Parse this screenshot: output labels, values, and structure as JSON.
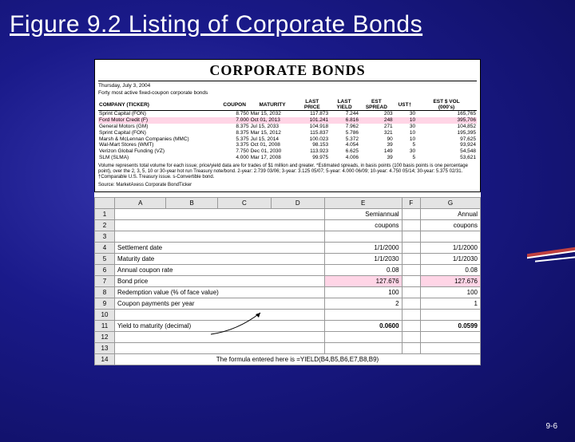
{
  "slide": {
    "title": "Figure 9.2 Listing of Corporate Bonds",
    "page_number": "9-6"
  },
  "bonds": {
    "box_title": "CORPORATE BONDS",
    "date_line": "Thursday, July 3, 2004",
    "sub_line": "Forty most active fixed-coupon corporate bonds",
    "headers": {
      "company": "COMPANY (TICKER)",
      "coupon": "COUPON",
      "maturity": "MATURITY",
      "last_price": "LAST\nPRICE",
      "last_yield": "LAST\nYIELD",
      "est_spread": "EST\nSPREAD",
      "ust": "UST†",
      "vol": "EST $ VOL\n(000's)"
    },
    "rows": [
      {
        "company": "Sprint Capital (FON)",
        "coupon": "8.750",
        "maturity": "Mar 15, 2032",
        "price": "117.873",
        "yield": "7.244",
        "spread": "203",
        "ust": "30",
        "vol": "165,765"
      },
      {
        "company": "Ford Motor Credit (F)",
        "coupon": "7.000",
        "maturity": "Oct 01, 2013",
        "price": "101.241",
        "yield": "6.816",
        "spread": "248",
        "ust": "10",
        "vol": "395,706",
        "hl": true
      },
      {
        "company": "General Motors (GM)",
        "coupon": "8.375",
        "maturity": "Jul 15, 2033",
        "price": "104.918",
        "yield": "7.962",
        "spread": "271",
        "ust": "30",
        "vol": "104,852"
      },
      {
        "company": "Sprint Capital (FON)",
        "coupon": "8.375",
        "maturity": "Mar 15, 2012",
        "price": "115.837",
        "yield": "5.786",
        "spread": "321",
        "ust": "10",
        "vol": "195,395"
      },
      {
        "company": "Marsh & McLennan Companies (MMC)",
        "coupon": "5.375",
        "maturity": "Jul 15, 2014",
        "price": "100.023",
        "yield": "5.372",
        "spread": "90",
        "ust": "10",
        "vol": "97,625"
      },
      {
        "company": "Wal-Mart Stores (WMT)",
        "coupon": "3.375",
        "maturity": "Oct 01, 2008",
        "price": "98.153",
        "yield": "4.054",
        "spread": "39",
        "ust": "5",
        "vol": "93,924"
      },
      {
        "company": "Verizon Global Funding (VZ)",
        "coupon": "7.750",
        "maturity": "Dec 01, 2030",
        "price": "113.923",
        "yield": "6.625",
        "spread": "149",
        "ust": "30",
        "vol": "54,548"
      },
      {
        "company": "SLM (SLMA)",
        "coupon": "4.000",
        "maturity": "Mar 17, 2008",
        "price": "99.975",
        "yield": "4.006",
        "spread": "39",
        "ust": "5",
        "vol": "53,621"
      }
    ],
    "footnote": "Volume represents total volume for each issue; price/yield data are for trades of $1 million and greater. *Estimated spreads, in basis points (100 basis points is one percentage point), over the 2, 3, 5, 10 or 30-year hot run Treasury note/bond. 2-year: 2.739 03/06; 3-year: 3.125 05/07; 5-year: 4.000 06/09; 10-year: 4.750 05/14; 30-year: 5.375 02/31. †Comparable U.S. Treasury issue. s-Convertible bond.",
    "source": "Source: MarketAxess Corporate BondTicker"
  },
  "sheet": {
    "cols": [
      "A",
      "B",
      "C",
      "D",
      "E",
      "F",
      "G"
    ],
    "rows": [
      {
        "n": "1",
        "E": "Semiannual",
        "G": "Annual"
      },
      {
        "n": "2",
        "E": "coupons",
        "G": "coupons"
      },
      {
        "n": "3"
      },
      {
        "n": "4",
        "A": "Settlement date",
        "E": "1/1/2000",
        "G": "1/1/2000",
        "erow": true
      },
      {
        "n": "5",
        "A": "Maturity date",
        "E": "1/1/2030",
        "G": "1/1/2030",
        "erow": true
      },
      {
        "n": "6",
        "A": "Annual coupon rate",
        "E": "0.08",
        "G": "0.08",
        "erow": true
      },
      {
        "n": "7",
        "A": "Bond price",
        "E": "127.676",
        "G": "127.676",
        "epink": true,
        "erow": true
      },
      {
        "n": "8",
        "A": "Redemption value (% of face value)",
        "E": "100",
        "G": "100",
        "erow": true
      },
      {
        "n": "9",
        "A": "Coupon payments per year",
        "E": "2",
        "G": "1",
        "erow": true
      },
      {
        "n": "10"
      },
      {
        "n": "11",
        "A": "Yield to maturity (decimal)",
        "E": "0.0600",
        "G": "0.0599",
        "ebold": true
      },
      {
        "n": "12"
      },
      {
        "n": "13"
      },
      {
        "n": "14",
        "A": "The formula entered here is  =YIELD(B4,B5,B6,E7,B8,B9)",
        "fullA": true
      }
    ]
  }
}
